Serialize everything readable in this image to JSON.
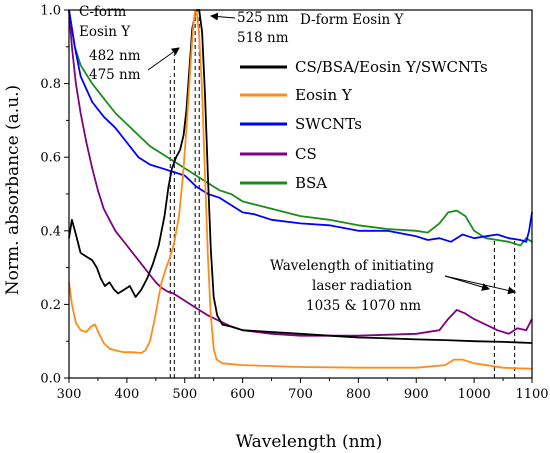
{
  "chart_data": {
    "type": "line",
    "title": "",
    "xlabel": "Wavelength (nm)",
    "ylabel": "Norm. absorbance (a.u.)",
    "xlim": [
      300,
      1100
    ],
    "ylim": [
      0,
      1.0
    ],
    "xticks": [
      300,
      400,
      500,
      600,
      700,
      800,
      900,
      1000,
      1100
    ],
    "yticks": [
      0.0,
      0.2,
      0.4,
      0.6,
      0.8,
      1.0
    ],
    "xtick_labels": [
      "300",
      "400",
      "500",
      "600",
      "700",
      "800",
      "900",
      "1000",
      "1100"
    ],
    "ytick_labels": [
      "0.0",
      "0.2",
      "0.4",
      "0.6",
      "0.8",
      "1.0"
    ],
    "grid": false,
    "legend_position": "top-right",
    "series": [
      {
        "name": "CS/BSA/Eosin Y/SWCNTs",
        "color": "#000000",
        "points": [
          [
            300,
            0.38
          ],
          [
            305,
            0.43
          ],
          [
            312,
            0.39
          ],
          [
            320,
            0.34
          ],
          [
            330,
            0.33
          ],
          [
            340,
            0.32
          ],
          [
            348,
            0.3
          ],
          [
            355,
            0.27
          ],
          [
            362,
            0.25
          ],
          [
            370,
            0.26
          ],
          [
            378,
            0.24
          ],
          [
            385,
            0.23
          ],
          [
            395,
            0.24
          ],
          [
            405,
            0.25
          ],
          [
            415,
            0.22
          ],
          [
            425,
            0.24
          ],
          [
            435,
            0.27
          ],
          [
            445,
            0.31
          ],
          [
            455,
            0.36
          ],
          [
            465,
            0.44
          ],
          [
            472,
            0.52
          ],
          [
            478,
            0.57
          ],
          [
            485,
            0.6
          ],
          [
            492,
            0.62
          ],
          [
            498,
            0.66
          ],
          [
            503,
            0.73
          ],
          [
            508,
            0.84
          ],
          [
            513,
            0.95
          ],
          [
            518,
            0.99
          ],
          [
            522,
            1.0
          ],
          [
            525,
            1.0
          ],
          [
            530,
            0.94
          ],
          [
            535,
            0.77
          ],
          [
            540,
            0.55
          ],
          [
            545,
            0.35
          ],
          [
            550,
            0.22
          ],
          [
            556,
            0.17
          ],
          [
            565,
            0.145
          ],
          [
            580,
            0.14
          ],
          [
            600,
            0.13
          ],
          [
            650,
            0.125
          ],
          [
            700,
            0.12
          ],
          [
            750,
            0.115
          ],
          [
            800,
            0.11
          ],
          [
            850,
            0.108
          ],
          [
            900,
            0.105
          ],
          [
            950,
            0.103
          ],
          [
            1000,
            0.1
          ],
          [
            1050,
            0.098
          ],
          [
            1100,
            0.095
          ]
        ]
      },
      {
        "name": "Eosin Y",
        "color": "#ff8c1a",
        "points": [
          [
            300,
            0.26
          ],
          [
            305,
            0.2
          ],
          [
            312,
            0.15
          ],
          [
            320,
            0.13
          ],
          [
            330,
            0.125
          ],
          [
            338,
            0.14
          ],
          [
            345,
            0.145
          ],
          [
            352,
            0.12
          ],
          [
            360,
            0.095
          ],
          [
            370,
            0.08
          ],
          [
            380,
            0.075
          ],
          [
            395,
            0.07
          ],
          [
            410,
            0.07
          ],
          [
            425,
            0.068
          ],
          [
            432,
            0.075
          ],
          [
            440,
            0.1
          ],
          [
            448,
            0.16
          ],
          [
            455,
            0.22
          ],
          [
            460,
            0.26
          ],
          [
            468,
            0.3
          ],
          [
            475,
            0.33
          ],
          [
            482,
            0.37
          ],
          [
            490,
            0.44
          ],
          [
            497,
            0.55
          ],
          [
            503,
            0.68
          ],
          [
            508,
            0.8
          ],
          [
            512,
            0.9
          ],
          [
            515,
            0.96
          ],
          [
            518,
            1.0
          ],
          [
            521,
            0.99
          ],
          [
            525,
            0.93
          ],
          [
            530,
            0.78
          ],
          [
            535,
            0.55
          ],
          [
            540,
            0.33
          ],
          [
            545,
            0.17
          ],
          [
            550,
            0.08
          ],
          [
            555,
            0.05
          ],
          [
            565,
            0.04
          ],
          [
            600,
            0.035
          ],
          [
            700,
            0.03
          ],
          [
            800,
            0.028
          ],
          [
            900,
            0.028
          ],
          [
            950,
            0.035
          ],
          [
            965,
            0.05
          ],
          [
            980,
            0.05
          ],
          [
            1000,
            0.04
          ],
          [
            1050,
            0.028
          ],
          [
            1100,
            0.025
          ]
        ]
      },
      {
        "name": "SWCNTs",
        "color": "#0000ff",
        "points": [
          [
            300,
            1.0
          ],
          [
            310,
            0.9
          ],
          [
            320,
            0.82
          ],
          [
            340,
            0.75
          ],
          [
            360,
            0.71
          ],
          [
            380,
            0.68
          ],
          [
            400,
            0.64
          ],
          [
            420,
            0.6
          ],
          [
            440,
            0.58
          ],
          [
            460,
            0.57
          ],
          [
            480,
            0.56
          ],
          [
            500,
            0.55
          ],
          [
            520,
            0.52
          ],
          [
            540,
            0.5
          ],
          [
            560,
            0.49
          ],
          [
            580,
            0.47
          ],
          [
            600,
            0.45
          ],
          [
            620,
            0.445
          ],
          [
            650,
            0.43
          ],
          [
            700,
            0.42
          ],
          [
            750,
            0.415
          ],
          [
            800,
            0.4
          ],
          [
            850,
            0.4
          ],
          [
            900,
            0.385
          ],
          [
            920,
            0.375
          ],
          [
            940,
            0.38
          ],
          [
            960,
            0.37
          ],
          [
            980,
            0.39
          ],
          [
            1000,
            0.38
          ],
          [
            1020,
            0.385
          ],
          [
            1040,
            0.39
          ],
          [
            1060,
            0.38
          ],
          [
            1080,
            0.375
          ],
          [
            1090,
            0.37
          ],
          [
            1095,
            0.4
          ],
          [
            1100,
            0.45
          ]
        ]
      },
      {
        "name": "CS",
        "color": "#800080",
        "points": [
          [
            300,
            1.0
          ],
          [
            305,
            0.9
          ],
          [
            312,
            0.8
          ],
          [
            320,
            0.72
          ],
          [
            330,
            0.64
          ],
          [
            340,
            0.57
          ],
          [
            350,
            0.51
          ],
          [
            360,
            0.46
          ],
          [
            370,
            0.43
          ],
          [
            380,
            0.4
          ],
          [
            390,
            0.38
          ],
          [
            400,
            0.36
          ],
          [
            410,
            0.34
          ],
          [
            420,
            0.32
          ],
          [
            430,
            0.3
          ],
          [
            440,
            0.28
          ],
          [
            450,
            0.26
          ],
          [
            460,
            0.245
          ],
          [
            470,
            0.235
          ],
          [
            480,
            0.23
          ],
          [
            490,
            0.22
          ],
          [
            500,
            0.21
          ],
          [
            520,
            0.19
          ],
          [
            540,
            0.17
          ],
          [
            560,
            0.155
          ],
          [
            580,
            0.14
          ],
          [
            600,
            0.13
          ],
          [
            650,
            0.12
          ],
          [
            700,
            0.115
          ],
          [
            800,
            0.115
          ],
          [
            900,
            0.12
          ],
          [
            940,
            0.13
          ],
          [
            955,
            0.16
          ],
          [
            970,
            0.185
          ],
          [
            985,
            0.175
          ],
          [
            1000,
            0.16
          ],
          [
            1020,
            0.145
          ],
          [
            1040,
            0.13
          ],
          [
            1060,
            0.12
          ],
          [
            1075,
            0.135
          ],
          [
            1090,
            0.13
          ],
          [
            1100,
            0.16
          ]
        ]
      },
      {
        "name": "BSA",
        "color": "#1a8c1a",
        "points": [
          [
            300,
            1.0
          ],
          [
            310,
            0.9
          ],
          [
            320,
            0.85
          ],
          [
            340,
            0.8
          ],
          [
            360,
            0.76
          ],
          [
            380,
            0.72
          ],
          [
            400,
            0.69
          ],
          [
            420,
            0.66
          ],
          [
            440,
            0.63
          ],
          [
            460,
            0.61
          ],
          [
            480,
            0.59
          ],
          [
            500,
            0.57
          ],
          [
            520,
            0.55
          ],
          [
            540,
            0.53
          ],
          [
            560,
            0.51
          ],
          [
            580,
            0.5
          ],
          [
            600,
            0.48
          ],
          [
            650,
            0.46
          ],
          [
            700,
            0.44
          ],
          [
            750,
            0.43
          ],
          [
            800,
            0.415
          ],
          [
            850,
            0.405
          ],
          [
            900,
            0.4
          ],
          [
            920,
            0.395
          ],
          [
            940,
            0.42
          ],
          [
            955,
            0.45
          ],
          [
            970,
            0.455
          ],
          [
            985,
            0.44
          ],
          [
            1000,
            0.4
          ],
          [
            1020,
            0.38
          ],
          [
            1040,
            0.375
          ],
          [
            1060,
            0.37
          ],
          [
            1080,
            0.36
          ],
          [
            1090,
            0.38
          ],
          [
            1100,
            0.37
          ]
        ]
      }
    ],
    "vlines": [
      {
        "x": 475,
        "ymax": 0.82
      },
      {
        "x": 482,
        "ymax": 0.88
      },
      {
        "x": 518,
        "ymax": 1.0
      },
      {
        "x": 525,
        "ymax": 1.0
      },
      {
        "x": 1035,
        "ymax": 0.38
      },
      {
        "x": 1070,
        "ymax": 0.38
      }
    ],
    "annotations": [
      {
        "text": "C-form",
        "color": "#000000"
      },
      {
        "text": "Eosin Y",
        "color": "#000000"
      },
      {
        "text": "482 nm",
        "color": "#ff8c1a"
      },
      {
        "text": "475 nm",
        "color": "#000000"
      },
      {
        "text": "525 nm",
        "color": "#000000"
      },
      {
        "text": "D-form Eosin Y",
        "color": "#000000"
      },
      {
        "text": "518 nm",
        "color": "#ff8c1a"
      },
      {
        "text": "Wavelength of initiating",
        "color": "#000000"
      },
      {
        "text": "laser radiation",
        "color": "#000000"
      },
      {
        "text": "1035 & 1070 nm",
        "color": "#000000"
      }
    ]
  }
}
